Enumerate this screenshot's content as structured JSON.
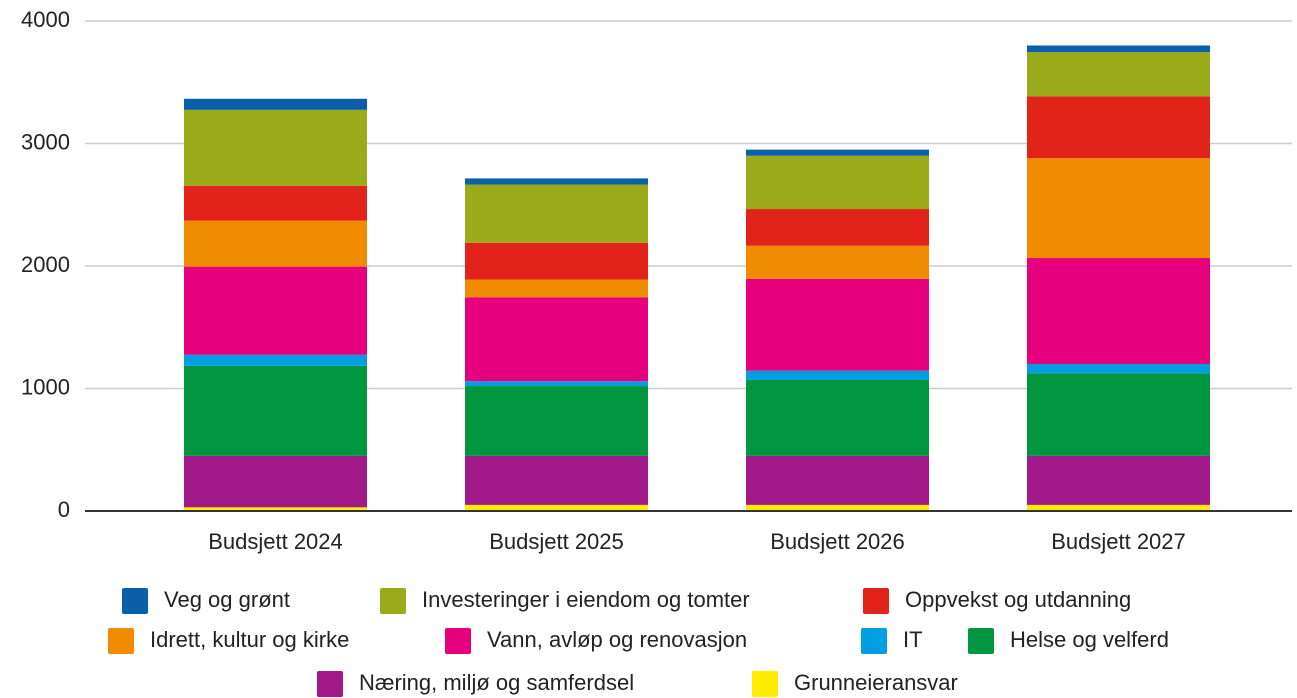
{
  "chart_data": {
    "type": "stacked_bar",
    "categories": [
      "Budsjett 2024",
      "Budsjett 2025",
      "Budsjett 2026",
      "Budsjett 2027"
    ],
    "series": [
      {
        "name": "Veg og grønt",
        "color": "#0b5ea8",
        "values": [
          90,
          50,
          50,
          55
        ]
      },
      {
        "name": "Investeringer i eiendom og tomter",
        "color": "#9aab19",
        "values": [
          620,
          475,
          435,
          360
        ]
      },
      {
        "name": "Oppvekst og utdanning",
        "color": "#e2231a",
        "values": [
          285,
          300,
          300,
          505
        ]
      },
      {
        "name": "Idrett, kultur og kirke",
        "color": "#f18c00",
        "values": [
          375,
          145,
          270,
          815
        ]
      },
      {
        "name": "Vann, avløp og renovasjon",
        "color": "#e6007e",
        "values": [
          720,
          685,
          750,
          865
        ]
      },
      {
        "name": "IT",
        "color": "#009fe3",
        "values": [
          90,
          40,
          75,
          75
        ]
      },
      {
        "name": "Helse og velferd",
        "color": "#009640",
        "values": [
          735,
          570,
          620,
          675
        ]
      },
      {
        "name": "Næring, miljø og samferdsel",
        "color": "#a21a8a",
        "values": [
          420,
          400,
          400,
          400
        ]
      },
      {
        "name": "Grunneieransvar",
        "color": "#ffec00",
        "values": [
          30,
          50,
          50,
          50
        ]
      }
    ],
    "ylim": [
      0,
      4000
    ],
    "yticks": [
      0,
      1000,
      2000,
      3000,
      4000
    ],
    "grid": true,
    "legend": "bottom"
  }
}
